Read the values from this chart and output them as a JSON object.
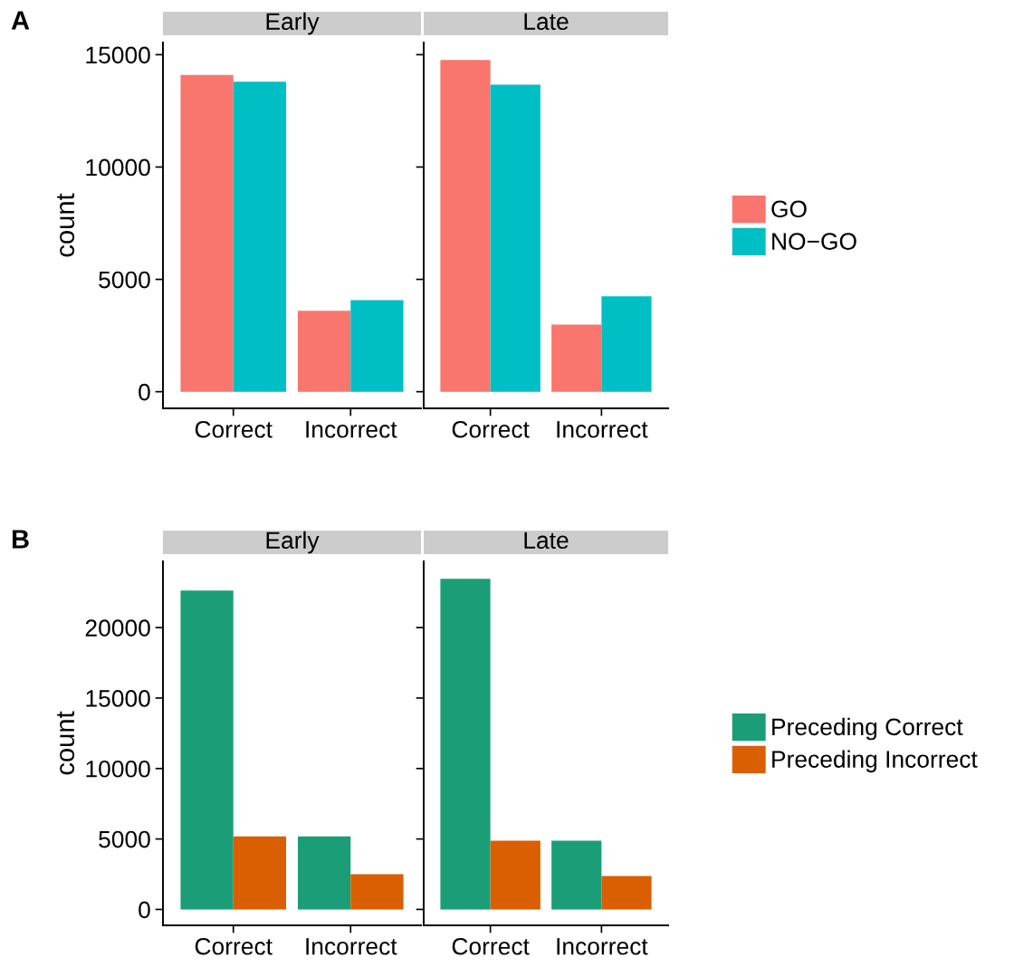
{
  "chart_data": [
    {
      "type": "bar",
      "title": "Early",
      "ylabel": "count",
      "annotations": [
        "A"
      ],
      "categories": [
        "Correct",
        "Incorrect"
      ],
      "ylim": [
        -740,
        15540
      ],
      "yticks": [
        0,
        5000,
        10000,
        15000
      ],
      "grid": false,
      "legend": "right",
      "series": [
        {
          "name": "GO",
          "color": "#f8766d",
          "values": [
            14100,
            3600
          ]
        },
        {
          "name": "NO−GO",
          "color": "#00bfc4",
          "values": [
            13800,
            4080
          ]
        }
      ]
    },
    {
      "type": "bar",
      "title": "Late",
      "categories": [
        "Correct",
        "Incorrect"
      ],
      "ylim": [
        -740,
        15540
      ],
      "yticks": [
        0,
        5000,
        10000,
        15000
      ],
      "tick_labels": "x",
      "grid": false,
      "series": [
        {
          "color": "#f8766d",
          "values": [
            14760,
            2990
          ]
        },
        {
          "color": "#00bfc4",
          "values": [
            13670,
            4250
          ]
        }
      ]
    },
    {
      "type": "bar",
      "title": "Early",
      "ylabel": "count",
      "annotations": [
        "B"
      ],
      "categories": [
        "Correct",
        "Incorrect"
      ],
      "ylim": [
        -1130,
        24700
      ],
      "yticks": [
        0,
        5000,
        10000,
        15000,
        20000
      ],
      "grid": false,
      "legend": "right",
      "series": [
        {
          "name": "Preceding Correct",
          "color": "#1b9e77",
          "values": [
            22630,
            5190
          ]
        },
        {
          "name": "Preceding Incorrect",
          "color": "#d95f02",
          "values": [
            5190,
            2500
          ]
        }
      ]
    },
    {
      "type": "bar",
      "title": "Late",
      "categories": [
        "Correct",
        "Incorrect"
      ],
      "ylim": [
        -1130,
        24700
      ],
      "yticks": [
        0,
        5000,
        10000,
        15000,
        20000
      ],
      "tick_labels": "x",
      "grid": false,
      "series": [
        {
          "color": "#1b9e77",
          "values": [
            23460,
            4870
          ]
        },
        {
          "color": "#d95f02",
          "values": [
            4870,
            2370
          ]
        }
      ]
    }
  ]
}
